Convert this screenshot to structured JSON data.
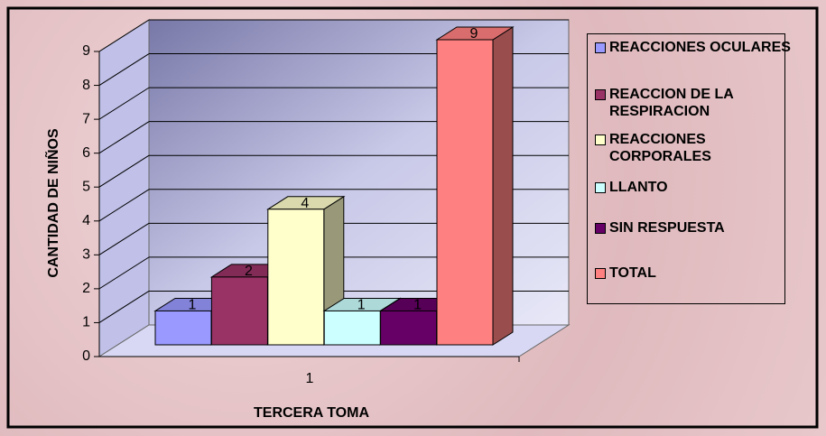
{
  "chart_data": {
    "type": "bar3d",
    "y_label": "CANTIDAD DE NIÑOS",
    "x_label": "TERCERA TOMA",
    "categories": [
      "1"
    ],
    "series": [
      {
        "name": "REACCIONES OCULARES",
        "color": "#9999ff",
        "values": [
          1
        ]
      },
      {
        "name": "REACCION DE LA RESPIRACION",
        "color": "#993366",
        "values": [
          2
        ]
      },
      {
        "name": "REACCIONES CORPORALES",
        "color": "#ffffcc",
        "values": [
          4
        ]
      },
      {
        "name": "LLANTO",
        "color": "#ccffff",
        "values": [
          1
        ]
      },
      {
        "name": "SIN RESPUESTA",
        "color": "#660066",
        "values": [
          1
        ]
      },
      {
        "name": "TOTAL",
        "color": "#ff8080",
        "values": [
          9
        ]
      }
    ],
    "ylim": [
      0,
      9
    ],
    "yticks": [
      0,
      1,
      2,
      3,
      4,
      5,
      6,
      7,
      8,
      9
    ],
    "grid": true
  }
}
